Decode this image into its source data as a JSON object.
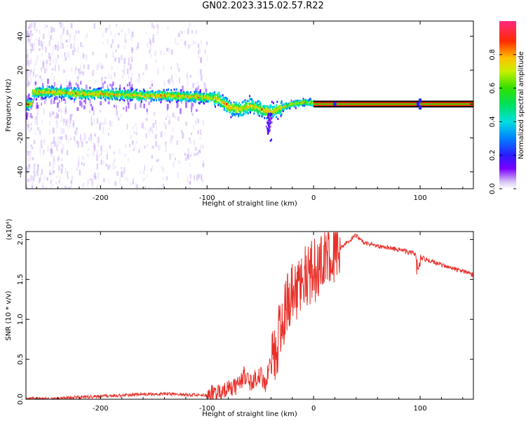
{
  "title": "GN02.2023.315.02.57.R22",
  "chart_data": [
    {
      "type": "heatmap",
      "xlabel": "Height of straight line (km)",
      "ylabel": "Frequency (Hz)",
      "xlim": [
        -270,
        150
      ],
      "ylim": [
        -50,
        49
      ],
      "x_ticks": [
        -200,
        -100,
        0,
        100
      ],
      "y_ticks": [
        -40,
        -20,
        0,
        20,
        40
      ],
      "colorbar": {
        "label": "Normalized spectral amplitude",
        "range": [
          0,
          1
        ],
        "ticks": [
          "0.0",
          "0.2",
          "0.4",
          "0.6",
          "0.8"
        ],
        "tick_values": [
          0.0,
          0.2,
          0.4,
          0.6,
          0.8
        ]
      },
      "ridge": [
        {
          "x": -265,
          "freq": 7
        },
        {
          "x": -240,
          "freq": 7
        },
        {
          "x": -220,
          "freq": 6
        },
        {
          "x": -200,
          "freq": 6
        },
        {
          "x": -180,
          "freq": 5.5
        },
        {
          "x": -160,
          "freq": 5
        },
        {
          "x": -140,
          "freq": 5
        },
        {
          "x": -120,
          "freq": 4.5
        },
        {
          "x": -100,
          "freq": 4
        },
        {
          "x": -90,
          "freq": 3
        },
        {
          "x": -80,
          "freq": -2
        },
        {
          "x": -70,
          "freq": -3
        },
        {
          "x": -60,
          "freq": -1
        },
        {
          "x": -50,
          "freq": -3
        },
        {
          "x": -40,
          "freq": -5
        },
        {
          "x": -30,
          "freq": -2
        },
        {
          "x": -20,
          "freq": 0
        },
        {
          "x": -10,
          "freq": 1
        },
        {
          "x": 0,
          "freq": 0.5
        },
        {
          "x": 20,
          "freq": 0
        },
        {
          "x": 60,
          "freq": 0
        },
        {
          "x": 100,
          "freq": 0
        },
        {
          "x": 150,
          "freq": 0
        }
      ]
    },
    {
      "type": "line",
      "xlabel": "Height of straight line (km)",
      "ylabel": "SNR (10 * v/v)",
      "y_multiplier_label": "(x10⁴)",
      "xlim": [
        -270,
        150
      ],
      "ylim": [
        0,
        2.1
      ],
      "x_ticks": [
        -200,
        -100,
        0,
        100
      ],
      "y_ticks": [
        "0.0",
        "0.5",
        "1.0",
        "1.5",
        "2.0"
      ],
      "y_tick_values": [
        0,
        0.5,
        1.0,
        1.5,
        2.0
      ],
      "color": "#e8302a",
      "series": [
        {
          "x": [
            -270,
            -250,
            -230,
            -210,
            -200,
            -180,
            -160,
            -140,
            -120,
            -100,
            -90,
            -80,
            -70,
            -65,
            -60,
            -55,
            -50,
            -45,
            -40,
            -35,
            -30,
            -25,
            -20,
            -15,
            -10,
            -5,
            0,
            5,
            10,
            15,
            20,
            25,
            30,
            35,
            40,
            45,
            50,
            60,
            70,
            80,
            90,
            95,
            98,
            100,
            110,
            120,
            130,
            140,
            150
          ],
          "y": [
            0.01,
            0.01,
            0.02,
            0.03,
            0.04,
            0.05,
            0.06,
            0.07,
            0.06,
            0.05,
            0.08,
            0.12,
            0.18,
            0.3,
            0.22,
            0.25,
            0.3,
            0.2,
            0.5,
            0.6,
            1.0,
            1.2,
            1.3,
            1.4,
            1.5,
            1.55,
            1.6,
            1.65,
            1.75,
            1.8,
            1.85,
            1.9,
            1.95,
            2.0,
            2.05,
            1.98,
            1.95,
            1.92,
            1.9,
            1.87,
            1.84,
            1.82,
            1.8,
            1.78,
            1.73,
            1.68,
            1.64,
            1.6,
            1.56
          ]
        }
      ]
    }
  ]
}
